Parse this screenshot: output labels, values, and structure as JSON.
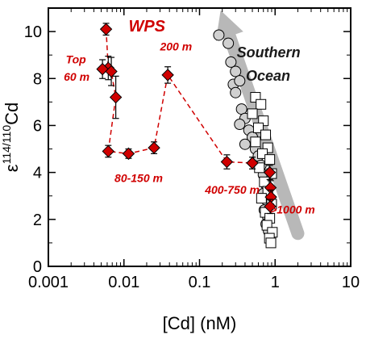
{
  "chart_data": {
    "type": "scatter",
    "xlabel": "[Cd] (nM)",
    "ylabel": "ε114/110Cd",
    "ylabel_base": "ε",
    "ylabel_sup": "114/110",
    "ylabel_rest": "Cd",
    "xscale": "log",
    "xlim": [
      0.001,
      10
    ],
    "ylim": [
      0,
      11
    ],
    "x_ticks": [
      0.001,
      0.01,
      0.1,
      1,
      10
    ],
    "x_tick_labels": [
      "0.001",
      "0.01",
      "0.1",
      "1",
      "10"
    ],
    "y_ticks": [
      0,
      2,
      4,
      6,
      8,
      10
    ],
    "y_tick_labels": [
      "0",
      "2",
      "4",
      "6",
      "8",
      "10"
    ],
    "grid": false,
    "colors": {
      "wps": "#d00000",
      "southern_ocean_fill": "#d0d0d0",
      "arrow": "#b8b8b8",
      "wps_line": "#d00000"
    },
    "series": [
      {
        "name": "WPS",
        "marker": "diamond",
        "connected": true,
        "points": [
          {
            "x": 0.0058,
            "y": 10.1,
            "err": 0.25
          },
          {
            "x": 0.0062,
            "y": 8.45,
            "err": 0.5
          },
          {
            "x": 0.0052,
            "y": 8.4,
            "err": 0.4
          },
          {
            "x": 0.0068,
            "y": 8.3,
            "err": 0.6
          },
          {
            "x": 0.0078,
            "y": 7.2,
            "err": 0.9
          },
          {
            "x": 0.0062,
            "y": 4.9,
            "err": 0.25
          },
          {
            "x": 0.0115,
            "y": 4.8,
            "err": 0.2
          },
          {
            "x": 0.025,
            "y": 5.05,
            "err": 0.25
          },
          {
            "x": 0.038,
            "y": 8.15,
            "err": 0.35
          },
          {
            "x": 0.23,
            "y": 4.45,
            "err": 0.3
          },
          {
            "x": 0.5,
            "y": 4.4,
            "err": 0.25
          },
          {
            "x": 0.85,
            "y": 4.0,
            "err": 0.3
          },
          {
            "x": 0.87,
            "y": 3.35,
            "err": 0.3
          },
          {
            "x": 0.88,
            "y": 2.95,
            "err": 0.3
          },
          {
            "x": 0.86,
            "y": 2.55,
            "err": 0.3
          }
        ]
      },
      {
        "name": "Southern Ocean (circles)",
        "marker": "circle",
        "points": [
          {
            "x": 0.18,
            "y": 9.85
          },
          {
            "x": 0.24,
            "y": 9.5
          },
          {
            "x": 0.26,
            "y": 8.7
          },
          {
            "x": 0.3,
            "y": 8.3
          },
          {
            "x": 0.28,
            "y": 7.75
          },
          {
            "x": 0.34,
            "y": 7.9
          },
          {
            "x": 0.3,
            "y": 7.4
          },
          {
            "x": 0.36,
            "y": 6.7
          },
          {
            "x": 0.4,
            "y": 6.3
          },
          {
            "x": 0.34,
            "y": 6.05
          },
          {
            "x": 0.45,
            "y": 5.8
          },
          {
            "x": 0.5,
            "y": 5.5
          },
          {
            "x": 0.4,
            "y": 5.2
          },
          {
            "x": 0.55,
            "y": 5.0
          },
          {
            "x": 0.6,
            "y": 4.7
          },
          {
            "x": 0.65,
            "y": 4.3
          },
          {
            "x": 0.7,
            "y": 3.9
          },
          {
            "x": 0.75,
            "y": 3.5
          },
          {
            "x": 0.7,
            "y": 3.1
          },
          {
            "x": 0.78,
            "y": 2.8
          },
          {
            "x": 0.72,
            "y": 2.4
          },
          {
            "x": 0.8,
            "y": 2.1
          },
          {
            "x": 0.76,
            "y": 1.8
          },
          {
            "x": 0.82,
            "y": 1.5
          }
        ]
      },
      {
        "name": "Southern Ocean (squares)",
        "marker": "square",
        "points": [
          {
            "x": 0.55,
            "y": 7.2
          },
          {
            "x": 0.65,
            "y": 6.9
          },
          {
            "x": 0.5,
            "y": 6.5
          },
          {
            "x": 0.7,
            "y": 6.2
          },
          {
            "x": 0.6,
            "y": 5.9
          },
          {
            "x": 0.75,
            "y": 5.6
          },
          {
            "x": 0.55,
            "y": 5.3
          },
          {
            "x": 0.8,
            "y": 5.05
          },
          {
            "x": 0.68,
            "y": 4.8
          },
          {
            "x": 0.85,
            "y": 4.55
          },
          {
            "x": 0.62,
            "y": 4.2
          },
          {
            "x": 0.9,
            "y": 3.95
          },
          {
            "x": 0.72,
            "y": 3.6
          },
          {
            "x": 0.8,
            "y": 3.2
          },
          {
            "x": 0.66,
            "y": 2.9
          },
          {
            "x": 0.9,
            "y": 2.65
          },
          {
            "x": 0.74,
            "y": 2.3
          },
          {
            "x": 0.85,
            "y": 2.05
          },
          {
            "x": 0.78,
            "y": 1.75
          },
          {
            "x": 0.92,
            "y": 1.45
          },
          {
            "x": 0.84,
            "y": 1.2
          },
          {
            "x": 0.88,
            "y": 1.0
          }
        ]
      }
    ],
    "arrow": {
      "from": {
        "x": 2.0,
        "y": 1.4
      },
      "to": {
        "x": 0.19,
        "y": 10.9
      },
      "label": "Southern Ocean"
    },
    "annotations": [
      {
        "text": "WPS",
        "x": 0.0115,
        "y": 10.0,
        "style": "wps"
      },
      {
        "text": "Top",
        "x": 0.0017,
        "y": 8.65,
        "style": "red"
      },
      {
        "text": "60 m",
        "x": 0.0016,
        "y": 7.9,
        "style": "red"
      },
      {
        "text": "200 m",
        "x": 0.03,
        "y": 9.2,
        "style": "red"
      },
      {
        "text": "80-150 m",
        "x": 0.0075,
        "y": 3.6,
        "style": "red"
      },
      {
        "text": "400-750 m",
        "x": 0.118,
        "y": 3.1,
        "style": "red"
      },
      {
        "text": ">1000 m",
        "x": 0.86,
        "y": 2.25,
        "style": "red"
      },
      {
        "text": "Southern",
        "x": 0.31,
        "y": 8.9,
        "style": "so"
      },
      {
        "text": "Ocean",
        "x": 0.41,
        "y": 7.9,
        "style": "so"
      }
    ]
  }
}
